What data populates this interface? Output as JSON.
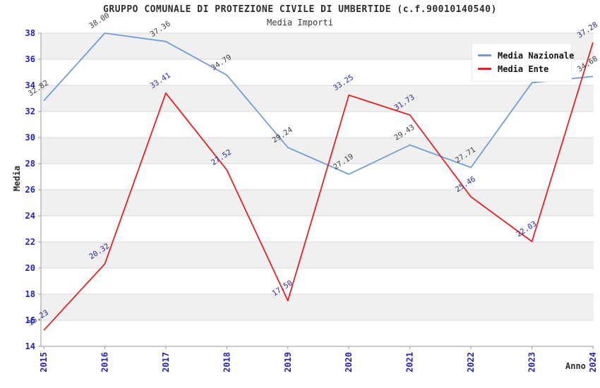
{
  "title": "GRUPPO COMUNALE DI PROTEZIONE CIVILE DI UMBERTIDE (c.f.90010140540)",
  "subtitle": "Media Importi",
  "axes": {
    "x_label": "Anno",
    "y_label": "Media"
  },
  "style": {
    "tick_label_color": "#2222bb",
    "band_color": "#f0f0f0",
    "gridline_color": "#dadada",
    "axis_line_color": "#9a9a9a"
  },
  "chart_data": {
    "type": "line",
    "title": "GRUPPO COMUNALE DI PROTEZIONE CIVILE DI UMBERTIDE (c.f.90010140540)",
    "subtitle": "Media Importi",
    "xlabel": "Anno",
    "ylabel": "Media",
    "x": [
      2015,
      2016,
      2017,
      2018,
      2019,
      2020,
      2021,
      2022,
      2023,
      2024
    ],
    "ylim": [
      14,
      38
    ],
    "ytick_step": 2,
    "grid": "horizontal-bands",
    "legend_position": "top-right",
    "series": [
      {
        "name": "Media Nazionale",
        "color": "#6f9ed8",
        "label_color": "#3d3d3d",
        "values": [
          32.82,
          38.0,
          37.36,
          34.79,
          29.24,
          27.19,
          29.43,
          27.71,
          34.2,
          34.68
        ]
      },
      {
        "name": "Media Ente",
        "color": "#e62222",
        "label_color": "#2929a3",
        "values": [
          15.23,
          20.32,
          33.41,
          27.52,
          17.5,
          33.25,
          31.73,
          25.46,
          22.03,
          37.28
        ]
      }
    ]
  }
}
